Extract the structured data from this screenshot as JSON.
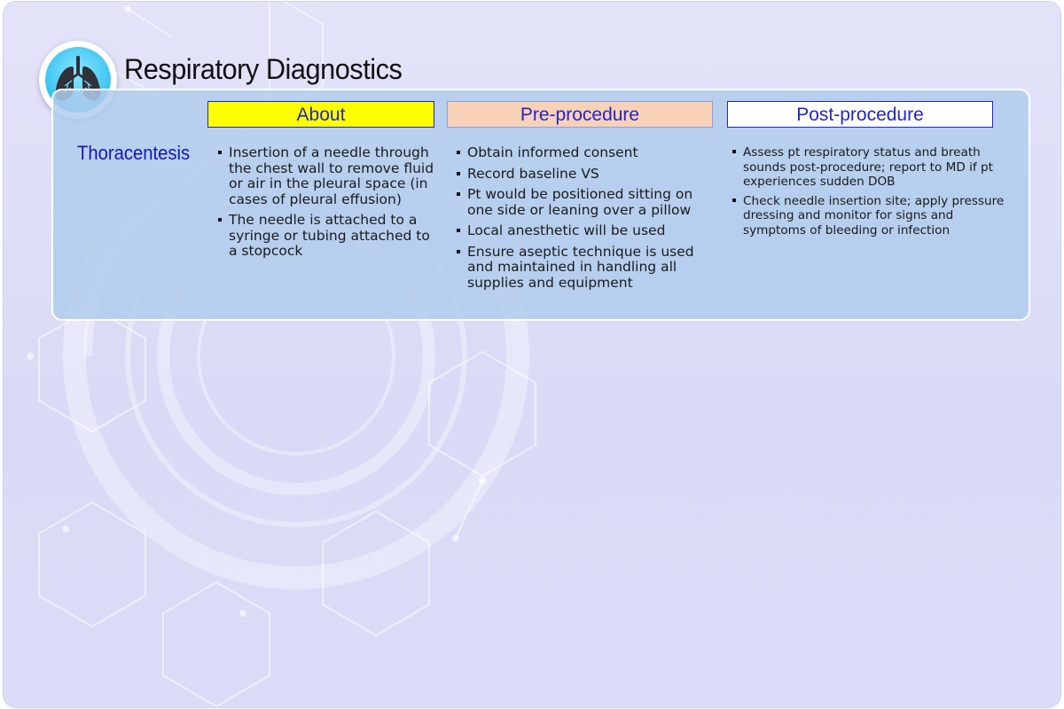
{
  "title": "Respiratory Diagnostics",
  "badge_icon": "lungs-icon",
  "procedure": "Thoracentesis",
  "columns": {
    "about": {
      "heading": "About",
      "color": "#ffff00",
      "items": [
        "Insertion of a needle through the chest wall to remove fluid or air in the pleural space (in cases of pleural effusion)",
        "The needle is attached to a syringe or tubing attached to a stopcock"
      ]
    },
    "pre": {
      "heading": "Pre-procedure",
      "color": "#f8d2b8",
      "items": [
        "Obtain informed consent",
        "Record baseline VS",
        "Pt would be positioned sitting on one side or leaning over a pillow",
        "Local anesthetic will be used",
        "Ensure aseptic technique is used and maintained in handling all supplies and equipment"
      ]
    },
    "post": {
      "heading": "Post-procedure",
      "color": "#ffffff",
      "items": [
        "Assess pt respiratory status and breath sounds post-procedure; report to MD if pt experiences sudden DOB",
        "Check needle insertion site; apply pressure dressing and monitor for signs and symptoms of bleeding or infection"
      ]
    }
  },
  "colors": {
    "heading_text": "#2424c8",
    "procedure_text": "#1616b4",
    "panel": "#b0ccec"
  }
}
